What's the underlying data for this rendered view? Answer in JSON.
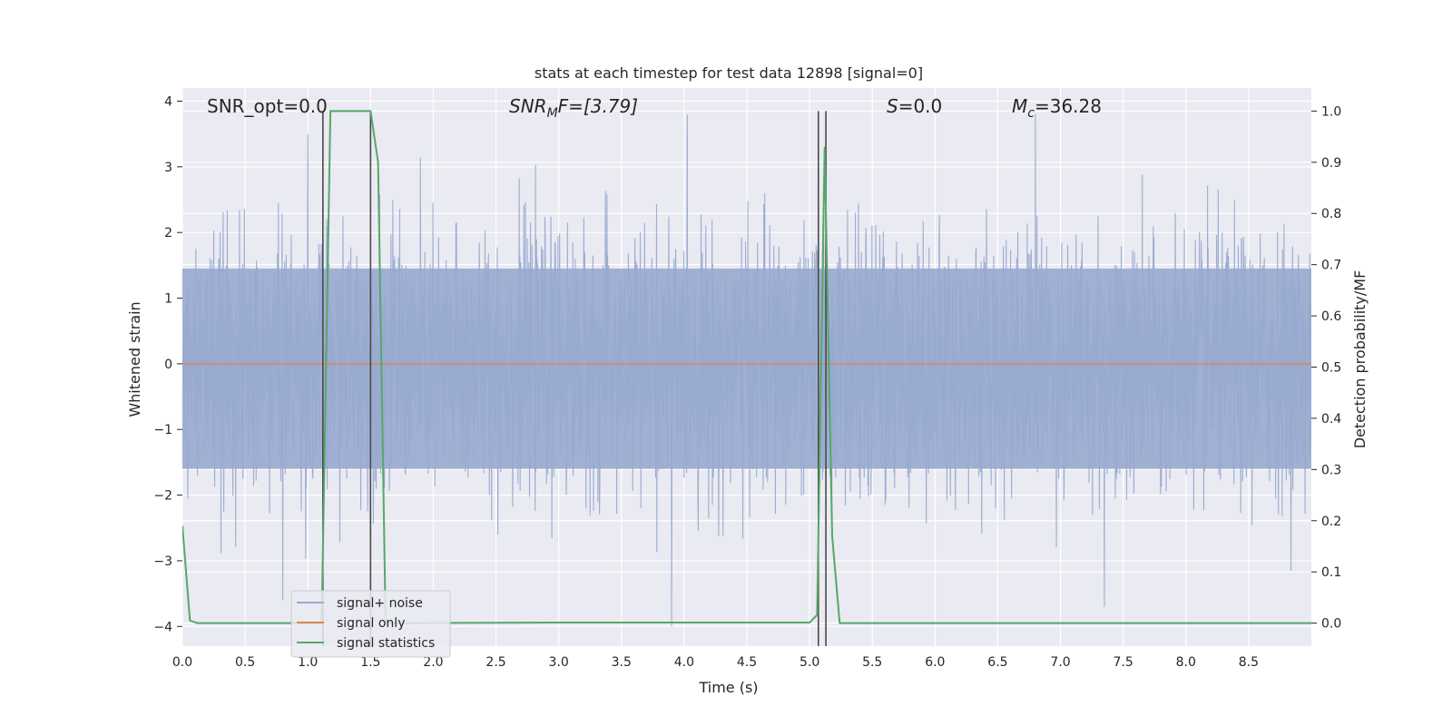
{
  "chart_data": {
    "type": "line",
    "title": "stats at each timestep for test data 12898 [signal=0]",
    "xlabel": "Time (s)",
    "ylabel_left": "Whitened strain",
    "ylabel_right": "Detection probability/MF",
    "xlim": [
      0.0,
      9.0
    ],
    "ylim_left": [
      -4.3,
      4.2
    ],
    "ylim_right": [
      -0.045,
      1.045
    ],
    "xticks": [
      "0.0",
      "0.5",
      "1.0",
      "1.5",
      "2.0",
      "2.5",
      "3.0",
      "3.5",
      "4.0",
      "4.5",
      "5.0",
      "5.5",
      "6.0",
      "6.5",
      "7.0",
      "7.5",
      "8.0",
      "8.5"
    ],
    "yticks_left": [
      "4",
      "3",
      "2",
      "1",
      "0",
      "−1",
      "−2",
      "−3",
      "−4"
    ],
    "yticks_right": [
      "1.0",
      "0.9",
      "0.8",
      "0.7",
      "0.6",
      "0.5",
      "0.4",
      "0.3",
      "0.2",
      "0.1",
      "0.0"
    ],
    "grid": true,
    "legend_position": "lower-left",
    "annotations": {
      "snr_opt": "SNR_opt=0.0",
      "snr_mf_prefix": "SNR",
      "snr_mf_sub": "M",
      "snr_mf_suffix": "F=[3.79]",
      "s_prefix": "S",
      "s_suffix": "=0.0",
      "mc_prefix": "M",
      "mc_sub": "c",
      "mc_suffix": "=36.28"
    },
    "series": [
      {
        "name": "signal+ noise",
        "color": "#98aacf",
        "description_range": [
          -4.0,
          3.8
        ],
        "notable_spikes": [
          {
            "t": 1.0,
            "y": 3.5
          },
          {
            "t": 0.8,
            "y": -3.6
          },
          {
            "t": 3.9,
            "y": -4.0
          },
          {
            "t": 6.8,
            "y": 3.8
          },
          {
            "t": 7.35,
            "y": -3.7
          }
        ]
      },
      {
        "name": "signal only",
        "color": "#dd8452",
        "x": [
          0.0,
          9.0
        ],
        "y": [
          0.0,
          0.0
        ]
      },
      {
        "name": "signal statistics",
        "color": "#55a868",
        "axis": "right",
        "x": [
          0.0,
          0.06,
          0.12,
          1.11,
          1.18,
          1.5,
          1.56,
          1.62,
          3.0,
          5.0,
          5.06,
          5.12,
          5.18,
          5.24,
          9.0
        ],
        "y": [
          0.19,
          0.005,
          0.0,
          0.0,
          1.0,
          1.0,
          0.9,
          0.0,
          0.001,
          0.001,
          0.016,
          0.93,
          0.17,
          0.0,
          0.0
        ]
      }
    ],
    "vertical_markers": {
      "color": "#4a4a4a",
      "x": [
        1.12,
        1.5,
        5.07,
        5.13
      ],
      "y_top_right": 1.0
    }
  }
}
